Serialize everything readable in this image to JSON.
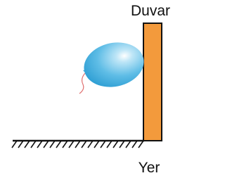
{
  "labels": {
    "wall": "Duvar",
    "ground": "Yer"
  }
}
